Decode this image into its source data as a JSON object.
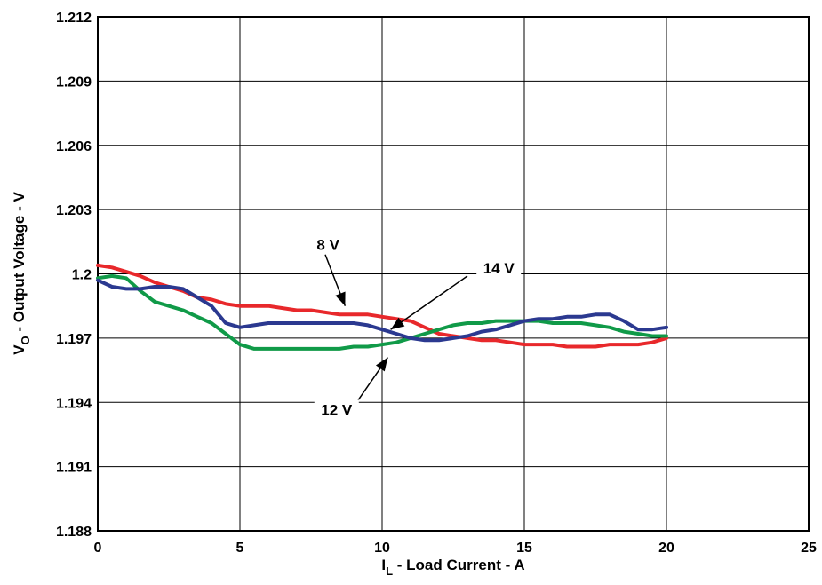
{
  "chart_data": {
    "type": "line",
    "title": "",
    "xlabel": {
      "main": "I",
      "sub": "L",
      "rest": " - Load Current - A"
    },
    "ylabel": {
      "main": "V",
      "sub": "O",
      "rest": " - Output Voltage - V"
    },
    "xlim": [
      0,
      25
    ],
    "ylim": [
      1.188,
      1.212
    ],
    "x_ticks": [
      0,
      5,
      10,
      15,
      20,
      25
    ],
    "y_ticks": [
      1.188,
      1.191,
      1.194,
      1.197,
      1.2,
      1.203,
      1.206,
      1.209,
      1.212
    ],
    "x_tick_labels": [
      "0",
      "5",
      "10",
      "15",
      "20",
      "25"
    ],
    "y_tick_labels": [
      "1.188",
      "1.191",
      "1.194",
      "1.197",
      "1.2",
      "1.203",
      "1.206",
      "1.209",
      "1.212"
    ],
    "grid": true,
    "series": [
      {
        "name": "8 V",
        "color": "#e8282b",
        "x": [
          0,
          0.5,
          1,
          1.5,
          2,
          2.5,
          3,
          3.5,
          4,
          4.5,
          5,
          5.5,
          6,
          6.5,
          7,
          7.5,
          8,
          8.5,
          9,
          9.5,
          10,
          10.5,
          11,
          11.5,
          12,
          12.5,
          13,
          13.5,
          14,
          14.5,
          15,
          15.5,
          16,
          16.5,
          17,
          17.5,
          18,
          18.5,
          19,
          19.5,
          20
        ],
        "y": [
          1.2004,
          1.2003,
          1.2001,
          1.1999,
          1.1996,
          1.1994,
          1.1992,
          1.1989,
          1.1988,
          1.1986,
          1.1985,
          1.1985,
          1.1985,
          1.1984,
          1.1983,
          1.1983,
          1.1982,
          1.1981,
          1.1981,
          1.1981,
          1.198,
          1.1979,
          1.1978,
          1.1975,
          1.1972,
          1.1971,
          1.197,
          1.1969,
          1.1969,
          1.1968,
          1.1967,
          1.1967,
          1.1967,
          1.1966,
          1.1966,
          1.1966,
          1.1967,
          1.1967,
          1.1967,
          1.1968,
          1.197
        ]
      },
      {
        "name": "12 V",
        "color": "#109a48",
        "x": [
          0,
          0.5,
          1,
          1.5,
          2,
          2.5,
          3,
          3.5,
          4,
          4.5,
          5,
          5.5,
          6,
          6.5,
          7,
          7.5,
          8,
          8.5,
          9,
          9.5,
          10,
          10.5,
          11,
          11.5,
          12,
          12.5,
          13,
          13.5,
          14,
          14.5,
          15,
          15.5,
          16,
          16.5,
          17,
          17.5,
          18,
          18.5,
          19,
          19.5,
          20
        ],
        "y": [
          1.1998,
          1.1999,
          1.1998,
          1.1992,
          1.1987,
          1.1985,
          1.1983,
          1.198,
          1.1977,
          1.1972,
          1.1967,
          1.1965,
          1.1965,
          1.1965,
          1.1965,
          1.1965,
          1.1965,
          1.1965,
          1.1966,
          1.1966,
          1.1967,
          1.1968,
          1.197,
          1.1972,
          1.1974,
          1.1976,
          1.1977,
          1.1977,
          1.1978,
          1.1978,
          1.1978,
          1.1978,
          1.1977,
          1.1977,
          1.1977,
          1.1976,
          1.1975,
          1.1973,
          1.1972,
          1.1971,
          1.1971
        ]
      },
      {
        "name": "14 V",
        "color": "#2b3990",
        "x": [
          0,
          0.5,
          1,
          1.5,
          2,
          2.5,
          3,
          3.5,
          4,
          4.5,
          5,
          5.5,
          6,
          6.5,
          7,
          7.5,
          8,
          8.5,
          9,
          9.5,
          10,
          10.5,
          11,
          11.5,
          12,
          12.5,
          13,
          13.5,
          14,
          14.5,
          15,
          15.5,
          16,
          16.5,
          17,
          17.5,
          18,
          18.5,
          19,
          19.5,
          20
        ],
        "y": [
          1.1997,
          1.1994,
          1.1993,
          1.1993,
          1.1994,
          1.1994,
          1.1993,
          1.1989,
          1.1985,
          1.1977,
          1.1975,
          1.1976,
          1.1977,
          1.1977,
          1.1977,
          1.1977,
          1.1977,
          1.1977,
          1.1977,
          1.1976,
          1.1974,
          1.1972,
          1.197,
          1.1969,
          1.1969,
          1.197,
          1.1971,
          1.1973,
          1.1974,
          1.1976,
          1.1978,
          1.1979,
          1.1979,
          1.198,
          1.198,
          1.1981,
          1.1981,
          1.1978,
          1.1974,
          1.1974,
          1.1975
        ]
      }
    ],
    "annotations": [
      {
        "text": "8 V",
        "series": "8 V",
        "label_at": [
          8.1,
          1.2012
        ],
        "arrow_from": [
          8.0,
          1.2009
        ],
        "arrow_to": [
          8.7,
          1.1985
        ]
      },
      {
        "text": "14 V",
        "series": "14 V",
        "label_at": [
          14.1,
          1.2001
        ],
        "arrow_from": [
          13.0,
          1.1999
        ],
        "arrow_to": [
          10.3,
          1.1974
        ]
      },
      {
        "text": "12 V",
        "series": "12 V",
        "label_at": [
          8.4,
          1.1935
        ],
        "arrow_from": [
          9.0,
          1.1938
        ],
        "arrow_to": [
          10.2,
          1.1961
        ]
      }
    ]
  }
}
